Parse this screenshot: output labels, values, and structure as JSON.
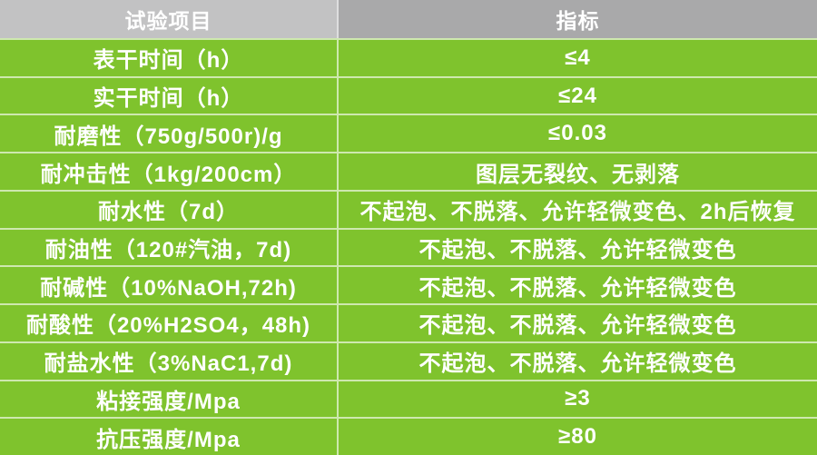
{
  "table": {
    "header": {
      "item_label": "试验项目",
      "value_label": "指标"
    },
    "rows": [
      {
        "item": "表干时间（h）",
        "value": "≤4"
      },
      {
        "item": "实干时间（h）",
        "value": "≤24"
      },
      {
        "item": "耐磨性（750g/500r)/g",
        "value": "≤0.03"
      },
      {
        "item": "耐冲击性（1kg/200cm）",
        "value": "图层无裂纹、无剥落"
      },
      {
        "item": "耐水性（7d）",
        "value": "不起泡、不脱落、允许轻微变色、2h后恢复"
      },
      {
        "item": "耐油性（120#汽油，7d)",
        "value": "不起泡、不脱落、允许轻微变色"
      },
      {
        "item": "耐碱性（10%NaOH,72h)",
        "value": "不起泡、不脱落、允许轻微变色"
      },
      {
        "item": "耐酸性（20%H2SO4，48h)",
        "value": "不起泡、不脱落、允许轻微变色"
      },
      {
        "item": "耐盐水性（3%NaC1,7d)",
        "value": "不起泡、不脱落、允许轻微变色"
      },
      {
        "item": "粘接强度/Mpa",
        "value": "≥3"
      },
      {
        "item": "抗压强度/Mpa",
        "value": "≥80"
      }
    ]
  },
  "colors": {
    "green": "#7fc32d",
    "header_left_bg": "#c2c2c3",
    "header_right_bg": "#a9a9aa",
    "separator": "rgba(255,255,255,0.62)",
    "text": "#ffffff"
  }
}
